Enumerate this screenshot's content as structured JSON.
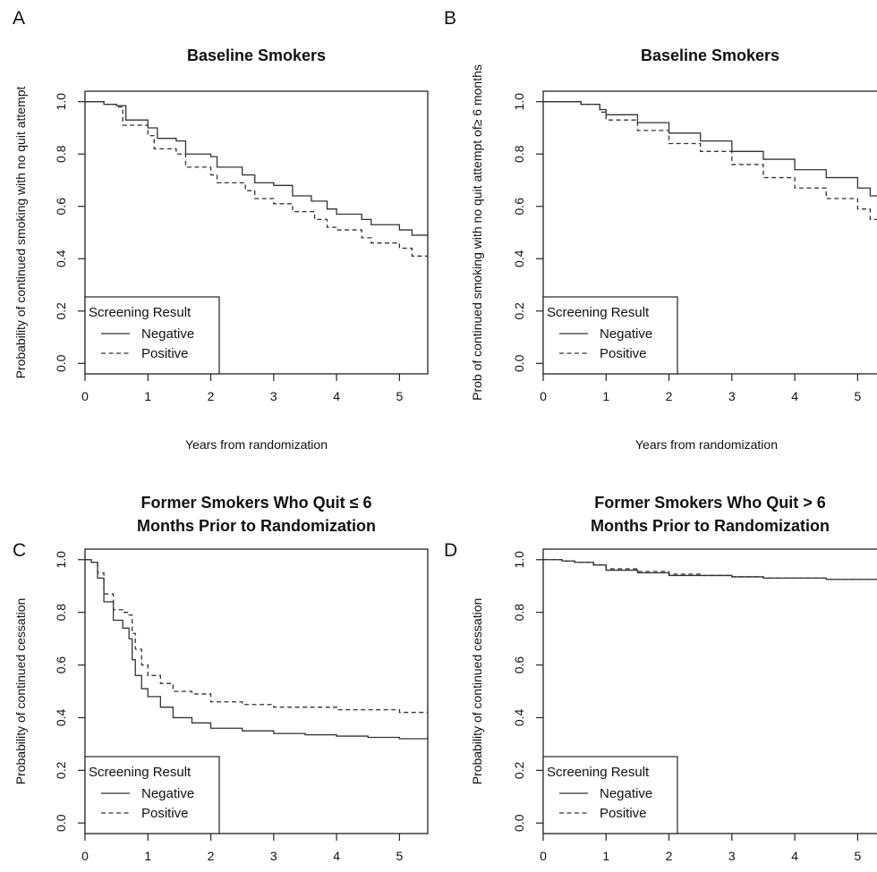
{
  "chart_data": [
    {
      "panel": "A",
      "type": "line",
      "title": [
        "Baseline Smokers"
      ],
      "xlabel": "Years from randomization",
      "ylabel": "Probability of continued smoking with no quit attempt",
      "xlim": [
        0,
        5.45
      ],
      "ylim": [
        0,
        1
      ],
      "xticks": [
        "0",
        "1",
        "2",
        "3",
        "4",
        "5"
      ],
      "yticks": [
        "0.0",
        "0.2",
        "0.4",
        "0.6",
        "0.8",
        "1.0"
      ],
      "legend": {
        "title": "Screening Result",
        "placement": "bottom-left",
        "entries": [
          "Negative",
          "Positive"
        ]
      },
      "series": [
        {
          "name": "Negative",
          "style": "solid",
          "x": [
            0,
            0.3,
            0.5,
            0.65,
            1.0,
            1.15,
            1.45,
            1.6,
            2.0,
            2.1,
            2.5,
            2.7,
            3.0,
            3.3,
            3.6,
            3.85,
            4.0,
            4.4,
            4.55,
            5.0,
            5.2,
            5.45
          ],
          "y": [
            1.0,
            0.99,
            0.985,
            0.93,
            0.9,
            0.86,
            0.85,
            0.8,
            0.79,
            0.75,
            0.72,
            0.69,
            0.68,
            0.64,
            0.62,
            0.59,
            0.57,
            0.55,
            0.53,
            0.51,
            0.49,
            0.48
          ]
        },
        {
          "name": "Positive",
          "style": "dashed",
          "x": [
            0,
            0.3,
            0.5,
            0.6,
            1.0,
            1.1,
            1.45,
            1.6,
            2.0,
            2.1,
            2.55,
            2.7,
            3.0,
            3.3,
            3.65,
            3.85,
            4.0,
            4.4,
            4.55,
            5.0,
            5.2,
            5.45
          ],
          "y": [
            1.0,
            0.99,
            0.98,
            0.91,
            0.87,
            0.82,
            0.8,
            0.75,
            0.72,
            0.69,
            0.66,
            0.63,
            0.61,
            0.58,
            0.55,
            0.52,
            0.51,
            0.48,
            0.46,
            0.44,
            0.41,
            0.4
          ]
        }
      ]
    },
    {
      "panel": "B",
      "type": "line",
      "title": [
        "Baseline Smokers"
      ],
      "xlabel": "Years from randomization",
      "ylabel": "Prob of continued smoking with no quit attempt of≥ 6 months",
      "xlim": [
        0,
        5.45
      ],
      "ylim": [
        0,
        1
      ],
      "xticks": [
        "0",
        "1",
        "2",
        "3",
        "4",
        "5"
      ],
      "yticks": [
        "0.0",
        "0.2",
        "0.4",
        "0.6",
        "0.8",
        "1.0"
      ],
      "legend": {
        "title": "Screening Result",
        "placement": "bottom-left",
        "entries": [
          "Negative",
          "Positive"
        ]
      },
      "series": [
        {
          "name": "Negative",
          "style": "solid",
          "x": [
            0,
            0.4,
            0.6,
            0.9,
            1.0,
            1.5,
            2.0,
            2.5,
            3.0,
            3.5,
            4.0,
            4.5,
            5.0,
            5.2,
            5.45
          ],
          "y": [
            1.0,
            1.0,
            0.99,
            0.97,
            0.95,
            0.92,
            0.88,
            0.85,
            0.81,
            0.78,
            0.74,
            0.71,
            0.67,
            0.64,
            0.61
          ]
        },
        {
          "name": "Positive",
          "style": "dashed",
          "x": [
            0,
            0.4,
            0.6,
            0.9,
            1.0,
            1.5,
            2.0,
            2.5,
            3.0,
            3.5,
            4.0,
            4.5,
            5.0,
            5.2,
            5.45
          ],
          "y": [
            1.0,
            1.0,
            0.99,
            0.96,
            0.93,
            0.89,
            0.84,
            0.81,
            0.76,
            0.71,
            0.67,
            0.63,
            0.59,
            0.55,
            0.53
          ]
        }
      ]
    },
    {
      "panel": "C",
      "type": "line",
      "title": [
        "Former Smokers Who Quit ≤ 6",
        "Months Prior to Randomization"
      ],
      "xlabel": "",
      "ylabel": "Probability of continued cessation",
      "xlim": [
        0,
        5.45
      ],
      "ylim": [
        0,
        1
      ],
      "xticks": [
        "0",
        "1",
        "2",
        "3",
        "4",
        "5"
      ],
      "yticks": [
        "0.0",
        "0.2",
        "0.4",
        "0.6",
        "0.8",
        "1.0"
      ],
      "legend": {
        "title": "Screening Result",
        "placement": "bottom-left",
        "entries": [
          "Negative",
          "Positive"
        ]
      },
      "series": [
        {
          "name": "Negative",
          "style": "solid",
          "x": [
            0,
            0.1,
            0.2,
            0.3,
            0.45,
            0.6,
            0.7,
            0.75,
            0.8,
            0.9,
            1.0,
            1.2,
            1.4,
            1.7,
            2.0,
            2.5,
            3.0,
            3.5,
            4.0,
            4.5,
            5.0,
            5.45
          ],
          "y": [
            1.0,
            0.99,
            0.93,
            0.84,
            0.77,
            0.74,
            0.7,
            0.62,
            0.56,
            0.51,
            0.48,
            0.44,
            0.4,
            0.38,
            0.36,
            0.35,
            0.34,
            0.335,
            0.33,
            0.325,
            0.32,
            0.32
          ]
        },
        {
          "name": "Positive",
          "style": "dashed",
          "x": [
            0,
            0.1,
            0.2,
            0.3,
            0.45,
            0.6,
            0.7,
            0.75,
            0.8,
            0.9,
            1.0,
            1.2,
            1.4,
            1.7,
            2.0,
            2.5,
            3.0,
            3.5,
            4.0,
            4.5,
            5.0,
            5.45
          ],
          "y": [
            1.0,
            0.99,
            0.95,
            0.87,
            0.81,
            0.8,
            0.79,
            0.72,
            0.66,
            0.6,
            0.56,
            0.53,
            0.5,
            0.49,
            0.46,
            0.45,
            0.44,
            0.44,
            0.43,
            0.43,
            0.42,
            0.42
          ]
        }
      ]
    },
    {
      "panel": "D",
      "type": "line",
      "title": [
        "Former Smokers Who Quit > 6",
        "Months Prior to Randomization"
      ],
      "xlabel": "",
      "ylabel": "Probability of continued cessation",
      "xlim": [
        0,
        5.45
      ],
      "ylim": [
        0,
        1
      ],
      "xticks": [
        "0",
        "1",
        "2",
        "3",
        "4",
        "5"
      ],
      "yticks": [
        "0.0",
        "0.2",
        "0.4",
        "0.6",
        "0.8",
        "1.0"
      ],
      "legend": {
        "title": "Screening Result",
        "placement": "bottom-left",
        "entries": [
          "Negative",
          "Positive"
        ]
      },
      "series": [
        {
          "name": "Negative",
          "style": "solid",
          "x": [
            0,
            0.3,
            0.5,
            0.8,
            1.0,
            1.5,
            2.0,
            2.5,
            3.0,
            3.5,
            4.0,
            4.5,
            5.0,
            5.45
          ],
          "y": [
            1.0,
            0.995,
            0.99,
            0.98,
            0.96,
            0.95,
            0.94,
            0.94,
            0.935,
            0.93,
            0.93,
            0.925,
            0.925,
            0.92
          ]
        },
        {
          "name": "Positive",
          "style": "dashed",
          "x": [
            0,
            0.3,
            0.5,
            0.8,
            1.0,
            1.5,
            2.0,
            2.5,
            3.0,
            3.5,
            4.0,
            4.5,
            5.0,
            5.45
          ],
          "y": [
            1.0,
            0.995,
            0.99,
            0.98,
            0.965,
            0.955,
            0.945,
            0.94,
            0.935,
            0.93,
            0.93,
            0.925,
            0.925,
            0.925
          ]
        }
      ]
    }
  ]
}
